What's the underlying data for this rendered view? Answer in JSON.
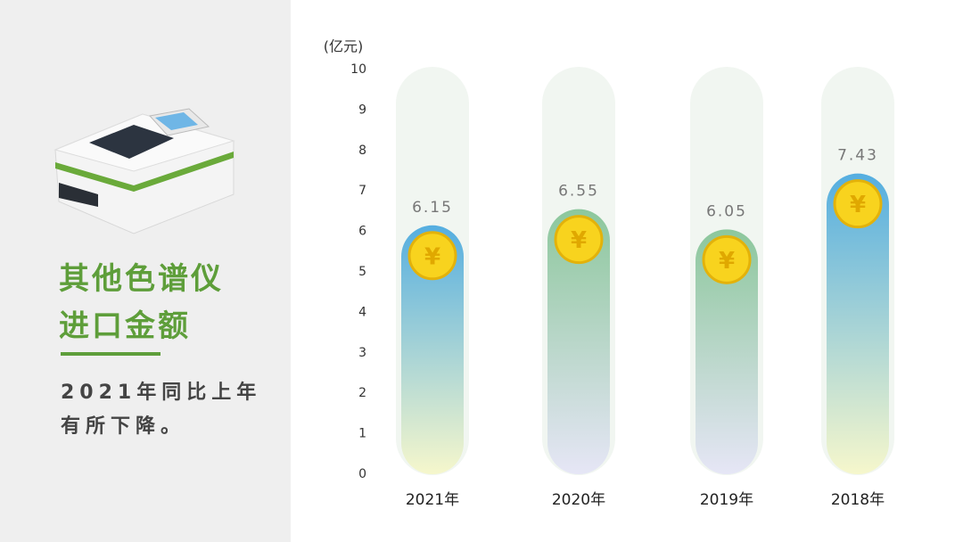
{
  "sidebar": {
    "title": [
      "其他色谱仪",
      "进口金额"
    ],
    "note": [
      "2021年同比上年",
      "有所下降。"
    ]
  },
  "coin": "¥",
  "chart_data": {
    "type": "bar",
    "y_label": "(亿元)",
    "categories": [
      "2021年",
      "2020年",
      "2019年",
      "2018年"
    ],
    "values": [
      6.15,
      6.55,
      6.05,
      7.43
    ],
    "colors": [
      {
        "top": "#55aee0",
        "bottom": "#f6f7cc"
      },
      {
        "top": "#8cc79c",
        "bottom": "#e6e6f6"
      },
      {
        "top": "#8cc79c",
        "bottom": "#e6e6f6"
      },
      {
        "top": "#55aee0",
        "bottom": "#f6f7cc"
      }
    ],
    "ylim": [
      0,
      10
    ],
    "yticks": [
      0,
      1,
      2,
      3,
      4,
      5,
      6,
      7,
      8,
      9,
      10
    ]
  }
}
